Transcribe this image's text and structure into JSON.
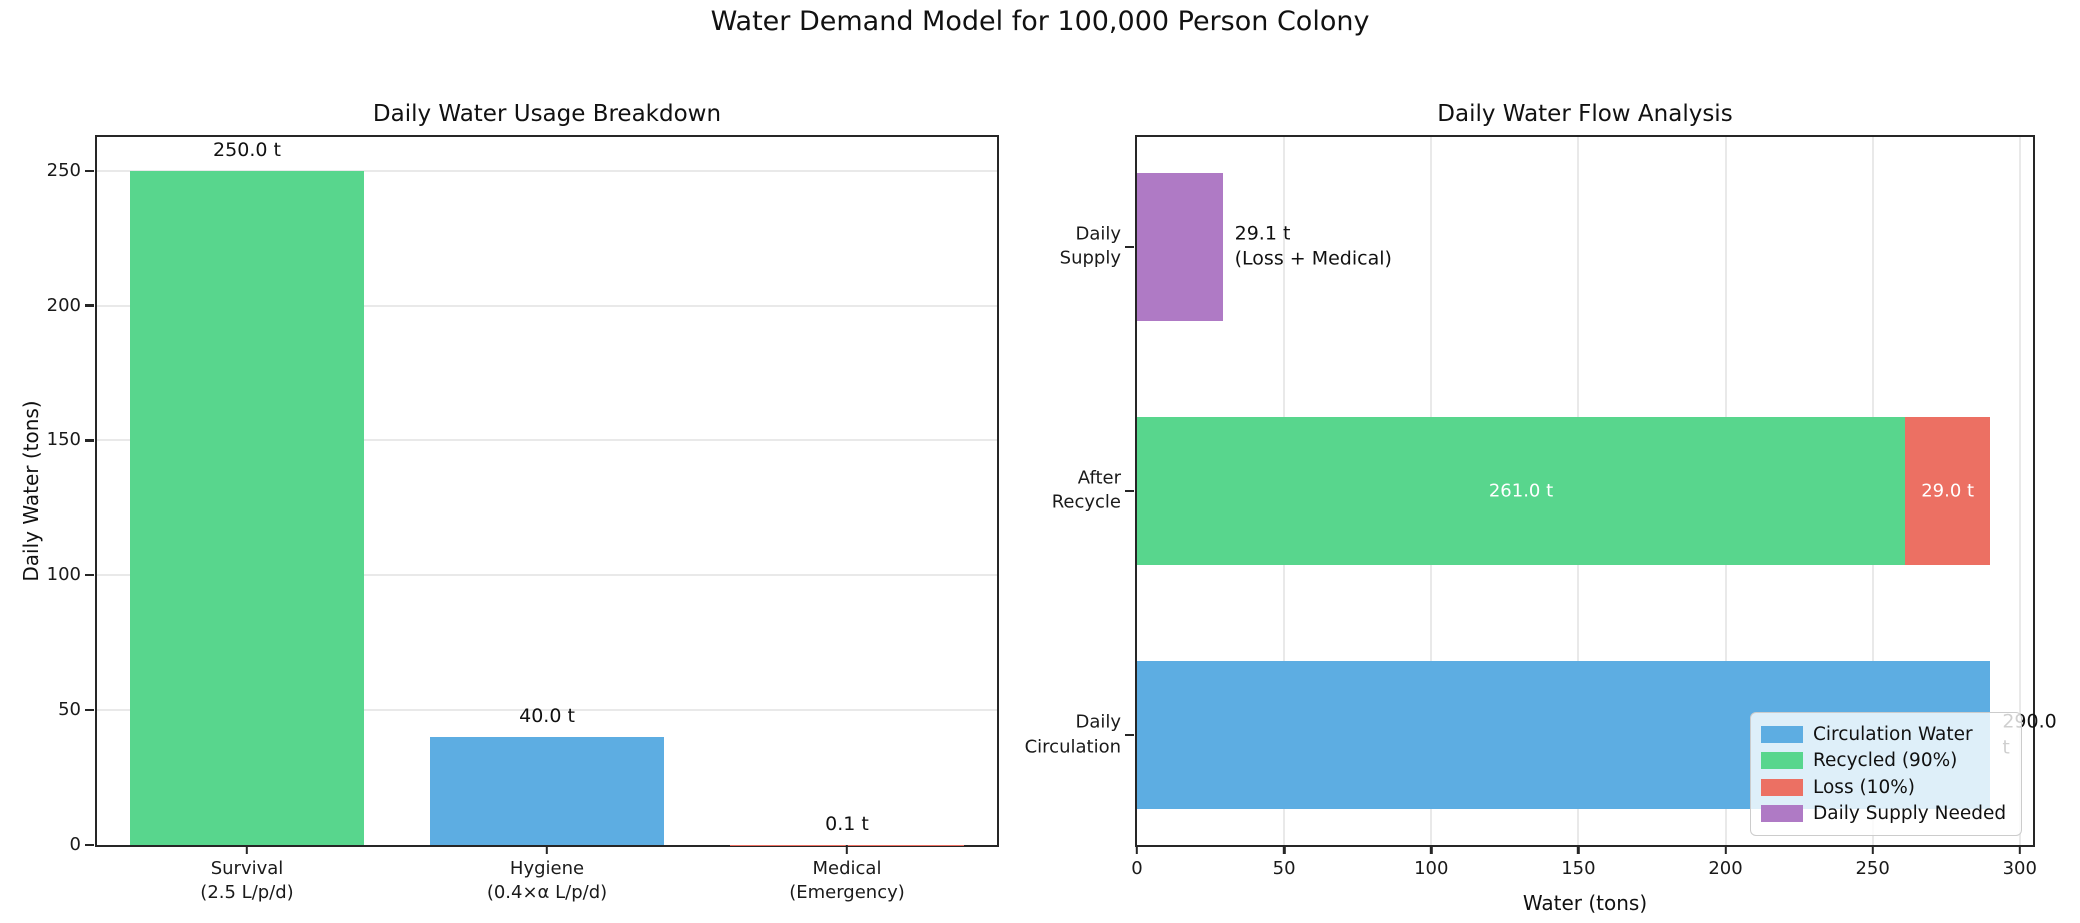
{
  "suptitle": "Water Demand Model for 100,000 Person Colony",
  "chart_data": [
    {
      "type": "bar",
      "title": "Daily Water Usage Breakdown",
      "ylabel": "Daily Water (tons)",
      "ylim": [
        0,
        262.5
      ],
      "yticks": [
        0,
        50,
        100,
        150,
        200,
        250
      ],
      "grid": "horizontal",
      "categories": [
        "Survival\n(2.5 L/p/d)",
        "Hygiene\n(0.4×α L/p/d)",
        "Medical\n(Emergency)"
      ],
      "values": [
        250.0,
        40.0,
        0.1
      ],
      "bar_labels": [
        "250.0 t",
        "40.0 t",
        "0.1 t"
      ],
      "bar_colors": [
        "#58D68D",
        "#5DADE2",
        "#EC7063"
      ]
    },
    {
      "type": "barh_stacked",
      "title": "Daily Water Flow Analysis",
      "xlabel": "Water (tons)",
      "xlim": [
        0,
        304.5
      ],
      "xticks": [
        0,
        50,
        100,
        150,
        200,
        250,
        300
      ],
      "grid": "vertical",
      "rows": [
        {
          "category": "Daily\nSupply",
          "segments": [
            {
              "name": "Daily Supply Needed",
              "value": 29.1,
              "color": "#AF7AC5",
              "label": ""
            }
          ],
          "annotation": "29.1 t\n(Loss + Medical)"
        },
        {
          "category": "After\nRecycle",
          "segments": [
            {
              "name": "Recycled (90%)",
              "value": 261.0,
              "color": "#58D68D",
              "label": "261.0 t"
            },
            {
              "name": "Loss (10%)",
              "value": 29.0,
              "color": "#EC7063",
              "label": "29.0 t"
            }
          ],
          "annotation": ""
        },
        {
          "category": "Daily\nCirculation",
          "segments": [
            {
              "name": "Circulation Water",
              "value": 290.0,
              "color": "#5DADE2",
              "label": ""
            }
          ],
          "annotation": "290.0 t"
        }
      ],
      "legend": [
        {
          "label": "Circulation Water",
          "color": "#5DADE2"
        },
        {
          "label": "Recycled (90%)",
          "color": "#58D68D"
        },
        {
          "label": "Loss (10%)",
          "color": "#EC7063"
        },
        {
          "label": "Daily Supply Needed",
          "color": "#AF7AC5"
        }
      ],
      "legend_position": "lower right"
    }
  ]
}
